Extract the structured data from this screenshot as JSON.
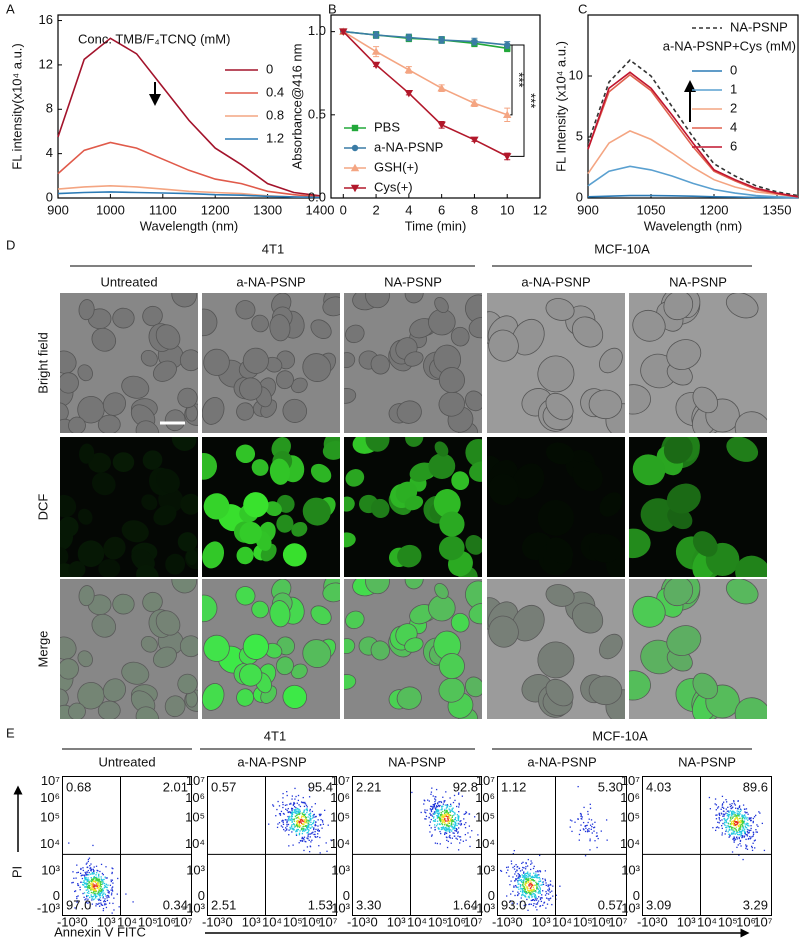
{
  "chart_data": [
    {
      "type": "line",
      "panel_label": "A",
      "x_label": "Wavelength (nm)",
      "y_label": "FL intensity(x10⁴ a.u.)",
      "legend_title": "Conc. TMB/F₄TCNQ (mM)",
      "x": [
        900,
        950,
        1000,
        1050,
        1100,
        1150,
        1200,
        1250,
        1300,
        1350,
        1400
      ],
      "xlim": [
        900,
        1400
      ],
      "xticks": [
        900,
        1000,
        1100,
        1200,
        1300,
        1400
      ],
      "ylim": [
        0,
        16.5
      ],
      "yticks": [
        0,
        4,
        8,
        12,
        16
      ],
      "series": [
        {
          "name": "0",
          "color": "#a3132b",
          "values": [
            5.5,
            12.5,
            14.4,
            13,
            10,
            7,
            4.5,
            3,
            1.3,
            0.5,
            0.2
          ]
        },
        {
          "name": "0.4",
          "color": "#e05a4a",
          "values": [
            2.2,
            4.3,
            5.0,
            4.5,
            3.5,
            2.5,
            1.7,
            1.3,
            0.6,
            0.3,
            0.1
          ]
        },
        {
          "name": "0.8",
          "color": "#f4a582",
          "values": [
            0.8,
            1.0,
            1.1,
            1.0,
            0.8,
            0.6,
            0.5,
            0.4,
            0.2,
            0.1,
            0.05
          ]
        },
        {
          "name": "1.2",
          "color": "#2c7bb6",
          "values": [
            0.4,
            0.5,
            0.55,
            0.5,
            0.45,
            0.4,
            0.3,
            0.25,
            0.15,
            0.1,
            0.05
          ]
        }
      ]
    },
    {
      "type": "line",
      "panel_label": "B",
      "x_label": "Time (min)",
      "y_label": "Absorbance@416 nm",
      "x": [
        0,
        2,
        4,
        6,
        8,
        10
      ],
      "xlim": [
        -0.75,
        12
      ],
      "xticks": [
        0,
        2,
        4,
        6,
        8,
        10,
        12
      ],
      "ylim": [
        0,
        1.1
      ],
      "yticks": [
        {
          "value": 0,
          "label": "0.0"
        },
        {
          "value": 0.5,
          "label": "0.5"
        },
        {
          "value": 1,
          "label": "1.0"
        }
      ],
      "annotations": [
        "***",
        "***"
      ],
      "series": [
        {
          "name": "PBS",
          "color": "#22a83a",
          "marker": "square",
          "values": [
            1.0,
            0.98,
            0.96,
            0.95,
            0.93,
            0.9
          ],
          "errors": [
            0.01,
            0.02,
            0.02,
            0.02,
            0.02,
            0.02
          ]
        },
        {
          "name": "a-NA-PSNP",
          "color": "#3a7ca5",
          "marker": "circle",
          "values": [
            1.0,
            0.98,
            0.965,
            0.95,
            0.94,
            0.92
          ],
          "errors": [
            0.01,
            0.02,
            0.02,
            0.02,
            0.02,
            0.02
          ]
        },
        {
          "name": "GSH(+)",
          "color": "#f4a582",
          "marker": "triangle-up",
          "values": [
            1.0,
            0.88,
            0.77,
            0.66,
            0.57,
            0.5
          ],
          "errors": [
            0.01,
            0.03,
            0.02,
            0.02,
            0.02,
            0.04
          ]
        },
        {
          "name": "Cys(+)",
          "color": "#b2182b",
          "marker": "triangle-down",
          "values": [
            1.0,
            0.8,
            0.63,
            0.44,
            0.35,
            0.25
          ],
          "errors": [
            0.01,
            0.01,
            0.01,
            0.02,
            0.01,
            0.02
          ]
        }
      ]
    },
    {
      "type": "line",
      "panel_label": "C",
      "x_label": "Wavelength (nm)",
      "y_label": "FL Intensity (x10⁴ a.u.)",
      "legend_title": "a-NA-PSNP+Cys (mM)",
      "x": [
        900,
        950,
        1000,
        1050,
        1100,
        1150,
        1200,
        1250,
        1300,
        1350,
        1400
      ],
      "xlim": [
        900,
        1400
      ],
      "xticks": [
        900,
        1050,
        1200,
        1350
      ],
      "ylim": [
        0,
        15
      ],
      "yticks": [
        0,
        5,
        10
      ],
      "series": [
        {
          "name": "NA-PSNP",
          "color": "#333333",
          "dash": true,
          "values": [
            4.5,
            9.5,
            11.3,
            10,
            7.5,
            5,
            2.8,
            1.8,
            1.0,
            0.5,
            0.2
          ]
        },
        {
          "name": "0",
          "color": "#2c7bb6",
          "values": [
            0.1,
            0.15,
            0.2,
            0.2,
            0.18,
            0.15,
            0.1,
            0.08,
            0.05,
            0.03,
            0.02
          ]
        },
        {
          "name": "1",
          "color": "#5aa0d0",
          "values": [
            1,
            2.2,
            2.6,
            2.3,
            1.8,
            1.2,
            0.7,
            0.4,
            0.2,
            0.1,
            0.05
          ]
        },
        {
          "name": "2",
          "color": "#f4a582",
          "values": [
            2,
            4.5,
            5.5,
            4.8,
            3.7,
            2.5,
            1.5,
            0.9,
            0.5,
            0.3,
            0.1
          ]
        },
        {
          "name": "4",
          "color": "#e0604e",
          "values": [
            4,
            8.7,
            10.1,
            8.8,
            6.5,
            4.2,
            2.2,
            1.4,
            0.7,
            0.35,
            0.1
          ]
        },
        {
          "name": "6",
          "color": "#c0152f",
          "values": [
            4,
            9,
            10.3,
            9,
            6.8,
            4.5,
            2.3,
            1.5,
            0.8,
            0.4,
            0.1
          ]
        }
      ]
    }
  ],
  "panel_d": {
    "panel_label": "D",
    "groups": [
      "4T1",
      "MCF-10A"
    ],
    "columns": [
      "Untreated",
      "a-NA-PSNP",
      "NA-PSNP",
      "a-NA-PSNP",
      "NA-PSNP"
    ],
    "rows": [
      "Bright field",
      "DCF",
      "Merge"
    ]
  },
  "panel_e": {
    "panel_label": "E",
    "groups": [
      "4T1",
      "MCF-10A"
    ],
    "columns": [
      "Untreated",
      "a-NA-PSNP",
      "NA-PSNP",
      "a-NA-PSNP",
      "NA-PSNP"
    ],
    "quadrants": [
      [
        "0.68",
        "2.01",
        "97.0",
        "0.34"
      ],
      [
        "0.57",
        "95.4",
        "2.51",
        "1.53"
      ],
      [
        "2.21",
        "92.8",
        "3.30",
        "1.64"
      ],
      [
        "1.12",
        "5.30",
        "93.0",
        "0.57"
      ],
      [
        "4.03",
        "89.6",
        "3.09",
        "3.29"
      ]
    ],
    "y_label": "PI",
    "x_label": "Annexin V FITC",
    "yticks": [
      "10⁷",
      "10⁶",
      "10⁵",
      "10⁴",
      "10³",
      "0",
      "-10³"
    ],
    "xticks": [
      "-10³",
      "0",
      "10³",
      "10⁴",
      "10⁵",
      "10⁶",
      "10⁷"
    ]
  }
}
